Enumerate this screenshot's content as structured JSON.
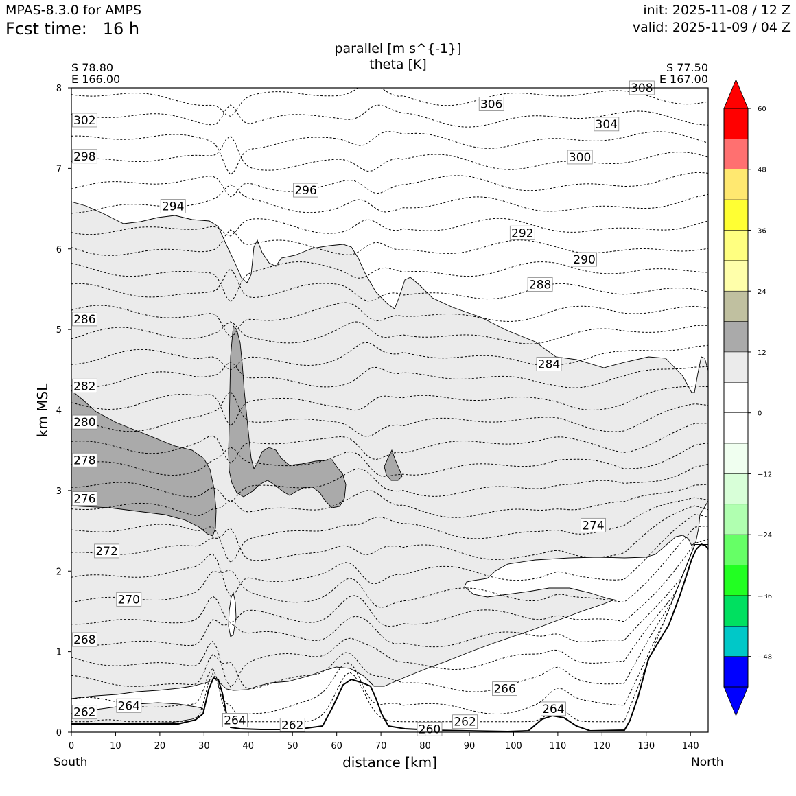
{
  "header": {
    "model": "MPAS-8.3.0 for AMPS",
    "fcst_label": "Fcst time:",
    "fcst_value": "16 h",
    "init": "init: 2025-11-08 / 12 Z",
    "valid": "valid: 2025-11-09 / 04 Z"
  },
  "chart_data": {
    "type": "cross-section (filled contour + line contour)",
    "title": "parallel [m s^{-1}]",
    "subtitle": "theta [K]",
    "xlabel": "distance [km]",
    "ylabel": "km MSL",
    "xlim": [
      0,
      144
    ],
    "ylim": [
      0,
      8
    ],
    "x_ticks": [
      "0",
      "10",
      "20",
      "30",
      "40",
      "50",
      "60",
      "70",
      "80",
      "90",
      "100",
      "110",
      "120",
      "130",
      "140"
    ],
    "y_ticks": [
      "0",
      "1",
      "2",
      "3",
      "4",
      "5",
      "6",
      "7",
      "8"
    ],
    "endpoints": {
      "left": {
        "lat": "S 78.80",
        "lon": "E 166.00",
        "label": "South"
      },
      "right": {
        "lat": "S 77.50",
        "lon": "E 167.00",
        "label": "North"
      }
    },
    "theta_contour_labels": [
      {
        "value": "262",
        "x": 3,
        "y": 0.25
      },
      {
        "value": "264",
        "x": 13,
        "y": 0.33
      },
      {
        "value": "264",
        "x": 37,
        "y": 0.15
      },
      {
        "value": "262",
        "x": 50,
        "y": 0.09
      },
      {
        "value": "260",
        "x": 81,
        "y": 0.04
      },
      {
        "value": "262",
        "x": 89,
        "y": 0.13
      },
      {
        "value": "264",
        "x": 109,
        "y": 0.29
      },
      {
        "value": "266",
        "x": 98,
        "y": 0.54
      },
      {
        "value": "268",
        "x": 3,
        "y": 1.15
      },
      {
        "value": "270",
        "x": 13,
        "y": 1.65
      },
      {
        "value": "272",
        "x": 8,
        "y": 2.25
      },
      {
        "value": "274",
        "x": 118,
        "y": 2.57
      },
      {
        "value": "276",
        "x": 3,
        "y": 2.9
      },
      {
        "value": "278",
        "x": 3,
        "y": 3.38
      },
      {
        "value": "280",
        "x": 3,
        "y": 3.85
      },
      {
        "value": "282",
        "x": 3,
        "y": 4.3
      },
      {
        "value": "284",
        "x": 108,
        "y": 4.57
      },
      {
        "value": "286",
        "x": 3,
        "y": 5.13
      },
      {
        "value": "288",
        "x": 106,
        "y": 5.56
      },
      {
        "value": "290",
        "x": 116,
        "y": 5.87
      },
      {
        "value": "292",
        "x": 102,
        "y": 6.2
      },
      {
        "value": "294",
        "x": 23,
        "y": 6.53
      },
      {
        "value": "296",
        "x": 53,
        "y": 6.73
      },
      {
        "value": "298",
        "x": 3,
        "y": 7.15
      },
      {
        "value": "300",
        "x": 115,
        "y": 7.14
      },
      {
        "value": "302",
        "x": 3,
        "y": 7.6
      },
      {
        "value": "304",
        "x": 121,
        "y": 7.55
      },
      {
        "value": "306",
        "x": 95,
        "y": 7.8
      },
      {
        "value": "308",
        "x": 129,
        "y": 8.0
      }
    ],
    "colorbar": {
      "ticks": [
        "60",
        "48",
        "36",
        "24",
        "12",
        "0",
        "−12",
        "−24",
        "−36",
        "−48"
      ],
      "levels": [
        -54,
        -51,
        -48,
        -45,
        -42,
        -39,
        -36,
        -33,
        -30,
        -27,
        -24,
        -21,
        -18,
        -15,
        -12,
        -9,
        -6,
        -3,
        0,
        3,
        6,
        9,
        12,
        15,
        18,
        21,
        24,
        27,
        30,
        33,
        36,
        39,
        42,
        45,
        48,
        51,
        54,
        57,
        60
      ],
      "colors_top_to_bottom": [
        "#ff0000",
        "#ff7070",
        "#ffe870",
        "#ffff33",
        "#ffff80",
        "#ffffaa",
        "#c0c0a0",
        "#aaaaaa",
        "#ebebeb",
        "#ffffff",
        "#ffffff",
        "#f0fff0",
        "#d8ffd8",
        "#b0ffb0",
        "#66ff66",
        "#22ff22",
        "#00e060",
        "#00c8c8",
        "#0000ff"
      ],
      "extend_top": "#ff0000",
      "extend_bottom": "#0000ff"
    },
    "fill_regions": [
      {
        "value_range": "6 to 12",
        "color": "#ebebeb"
      },
      {
        "value_range": "12 to 18",
        "color": "#aaaaaa"
      }
    ],
    "grid": false
  }
}
